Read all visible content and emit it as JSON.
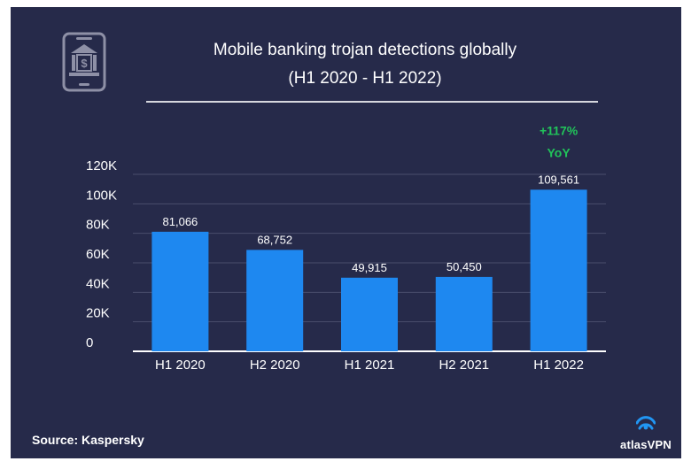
{
  "chart_data": {
    "type": "bar",
    "title": "Mobile banking trojan detections globally",
    "subtitle": "(H1 2020 - H1 2022)",
    "categories": [
      "H1 2020",
      "H2 2020",
      "H1 2021",
      "H2 2021",
      "H1 2022"
    ],
    "values": [
      81066,
      68752,
      49915,
      50450,
      109561
    ],
    "value_labels": [
      "81,066",
      "68,752",
      "49,915",
      "50,450",
      "109,561"
    ],
    "y_ticks": [
      0,
      20000,
      40000,
      60000,
      80000,
      100000,
      120000
    ],
    "y_tick_labels": [
      "0",
      "20K",
      "40K",
      "60K",
      "80K",
      "100K",
      "120K"
    ],
    "ylim": [
      0,
      120000
    ],
    "xlabel": "",
    "ylabel": "",
    "grid": true,
    "annotation": {
      "line1": "+117%",
      "line2": "YoY"
    }
  },
  "source": "Source: Kaspersky",
  "brand": "atlasVPN",
  "icons": {
    "header": "mobile-bank-icon",
    "brand": "atlas-logo-icon"
  },
  "colors": {
    "background": "#262a4a",
    "bar": "#1e88f0",
    "annotation": "#21c35a",
    "text": "#ffffff",
    "grid": "#4a4e6c"
  }
}
